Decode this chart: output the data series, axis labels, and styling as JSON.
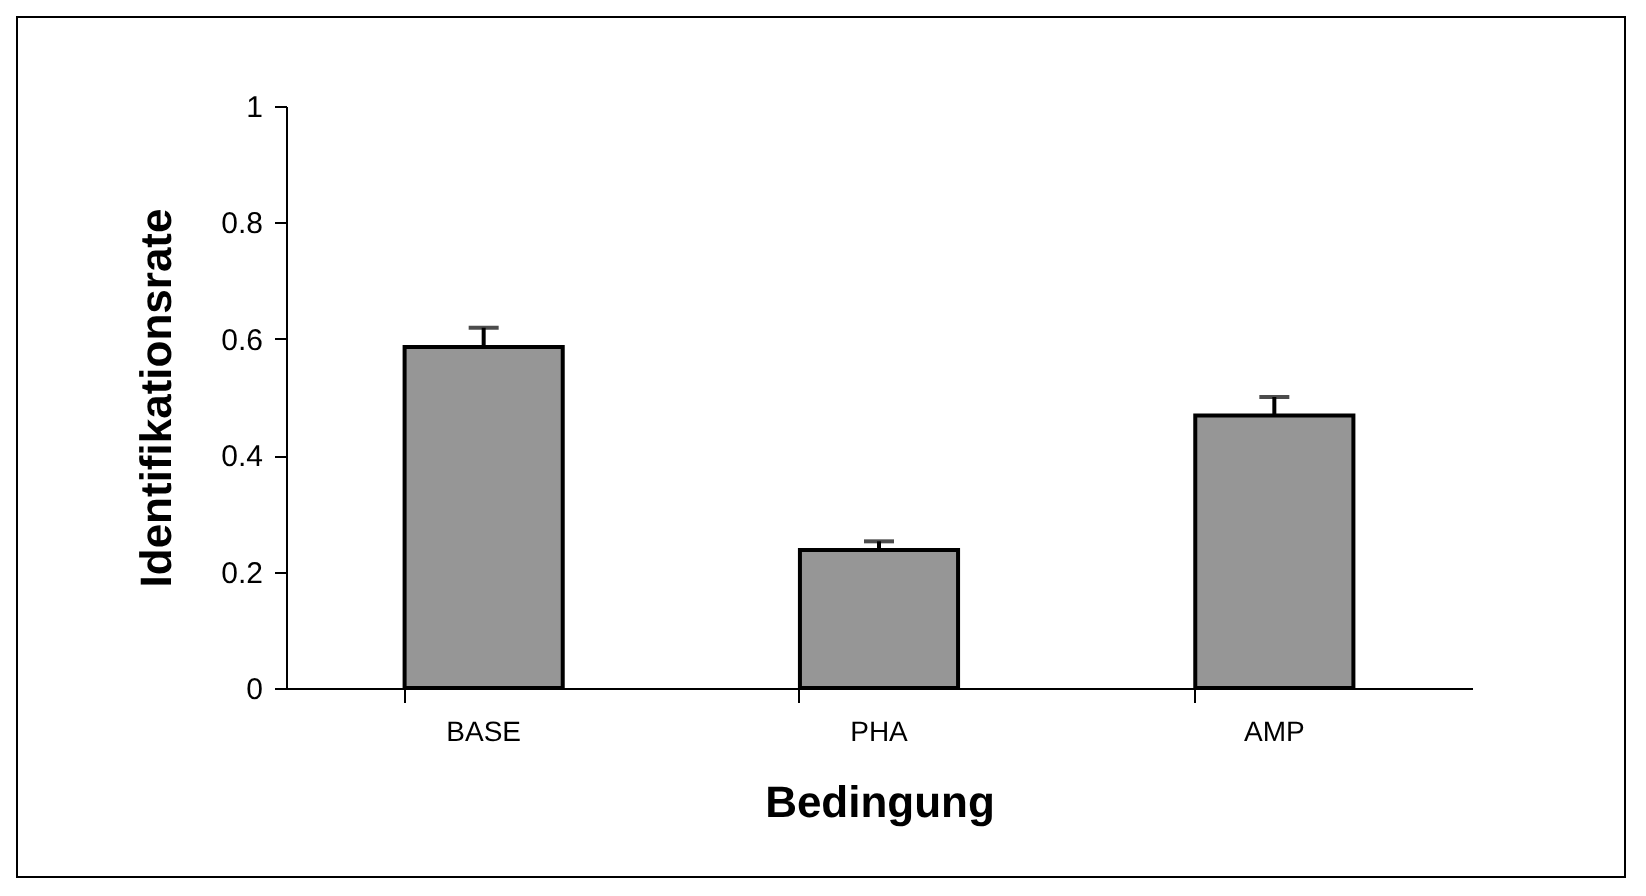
{
  "chart_data": {
    "type": "bar",
    "xlabel": "Bedingung",
    "ylabel": "Identifikationsrate",
    "categories": [
      "BASE",
      "PHA",
      "AMP"
    ],
    "values": [
      0.586,
      0.237,
      0.468
    ],
    "color": "#969696",
    "errors": [
      [
        0.586,
        0.619
      ],
      [
        0.237,
        0.252
      ],
      [
        0.468,
        0.5
      ]
    ],
    "ylim": [
      0,
      1
    ],
    "yticks": [
      0,
      0.2,
      0.4,
      0.6,
      0.8,
      1
    ],
    "grid": false
  }
}
